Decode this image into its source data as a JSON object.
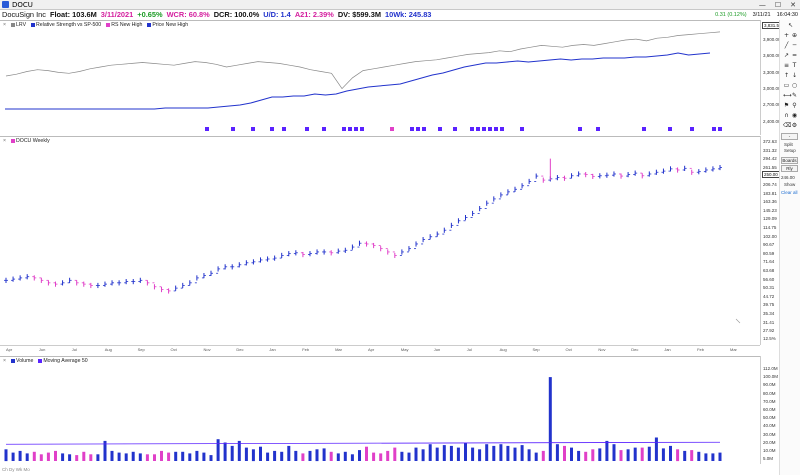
{
  "titlebar": {
    "ticker": "DOCU",
    "minimize": "—",
    "maximize": "☐",
    "close": "✕"
  },
  "info": {
    "company": "DocuSign Inc",
    "float": "Float: 103.6M",
    "date": "3/11/2021",
    "change": "+0.65%",
    "wcr": "WCR: 60.8%",
    "dcr": "DCR: 100.0%",
    "ud": "U/D: 1.4",
    "a21": "A21: 2.39%",
    "dv": "DV: $599.3M",
    "tenwk": "10Wk: 245.83"
  },
  "status": {
    "price": "0.31 (0.12%)",
    "date": "3/11/21",
    "time": "16:04:30"
  },
  "colors": {
    "blue": "#2233cc",
    "magenta": "#e040c8",
    "purple": "#5a22ff",
    "gray": "#888888"
  },
  "rs_panel": {
    "legend": [
      {
        "label": "LRV",
        "color": "#888888"
      },
      {
        "label": "Relative Strength vs SP-500",
        "color": "#2233cc"
      },
      {
        "label": "RS New High",
        "color": "#e040c8"
      },
      {
        "label": "Price New High",
        "color": "#2233cc"
      }
    ],
    "value_box": "3,831.56",
    "axis_labels": [
      "3,900.00",
      "3,600.00",
      "3,300.00",
      "3,000.00",
      "2,700.00",
      "2,400.00"
    ],
    "close_mark": "×"
  },
  "price_panel": {
    "legend": "DOCU Weekly",
    "price_box": "250.00",
    "axis_labels": [
      "372.63",
      "331.32",
      "294.42",
      "261.55",
      "232.63",
      "206.74",
      "183.81",
      "163.36",
      "145.23",
      "129.09",
      "114.75",
      "102.00",
      "90.67",
      "80.59",
      "71.64",
      "63.68",
      "56.60",
      "50.31",
      "44.72",
      "39.75",
      "35.34",
      "31.41",
      "27.92"
    ],
    "pct_label": "12.5%"
  },
  "volume_panel": {
    "legend_volume": "Volume",
    "legend_ma": "Moving Average 50",
    "axis_labels": [
      "112.0M",
      "100.0M",
      "90.0M",
      "80.0M",
      "70.0M",
      "60.0M",
      "50.0M",
      "40.0M",
      "30.0M",
      "20.0M",
      "10.0M",
      "5.0M"
    ]
  },
  "toolbar": {
    "minus": "-",
    "split": "Split",
    "setup": "Setup",
    "boards": "Boards",
    "boards_sub": "Rly",
    "show": "Show",
    "clear": "Clear all",
    "rs_value": "246.00"
  },
  "date_labels": [
    "Apr",
    "Jun",
    "Jul",
    "Aug",
    "Sep",
    "Oct",
    "Nov",
    "Dec",
    "Jan",
    "Feb",
    "Mar",
    "Apr",
    "May",
    "Jun",
    "Jul",
    "Aug",
    "Sep",
    "Oct",
    "Nov",
    "Dec",
    "Jan",
    "Feb",
    "Mar"
  ],
  "footer": "Ch Dy Wk Mo",
  "chart_data": {
    "type": "ohlc",
    "title": "DOCU Weekly",
    "weekly_closes": [
      60,
      61,
      62,
      63,
      62,
      60,
      58,
      57,
      58,
      60,
      58,
      57,
      56,
      56,
      57,
      58,
      58,
      59,
      59,
      60,
      58,
      55,
      53,
      52,
      54,
      56,
      58,
      62,
      64,
      66,
      70,
      72,
      72,
      74,
      76,
      77,
      79,
      80,
      81,
      84,
      86,
      87,
      85,
      86,
      88,
      88,
      87,
      89,
      90,
      94,
      99,
      98,
      96,
      92,
      88,
      84,
      88,
      92,
      98,
      104,
      108,
      112,
      118,
      126,
      134,
      140,
      148,
      158,
      170,
      180,
      190,
      198,
      205,
      215,
      228,
      245,
      232,
      236,
      240,
      238,
      246,
      252,
      250,
      244,
      246,
      248,
      252,
      245,
      250,
      255,
      246,
      252,
      258,
      262,
      270,
      266,
      272,
      258,
      260,
      266,
      270,
      275
    ],
    "rs_line": [
      24,
      24,
      24,
      24,
      24,
      24,
      24,
      24,
      24,
      24,
      24,
      24,
      24,
      24,
      24,
      25,
      25,
      25,
      25,
      25,
      26,
      27,
      28,
      30,
      33,
      36,
      36,
      37,
      37,
      39,
      38,
      39,
      42,
      44,
      46,
      47,
      48,
      49,
      52,
      55,
      58,
      60,
      63,
      66,
      68,
      70,
      70,
      71,
      72,
      71,
      72,
      73,
      74,
      73,
      74,
      74,
      75,
      75,
      75,
      76,
      76,
      77,
      78,
      80,
      78,
      79,
      80
    ],
    "price_line": [
      50,
      52,
      55,
      57,
      56,
      54,
      53,
      55,
      58,
      60,
      62,
      63,
      64,
      65,
      64,
      63,
      62,
      64,
      66,
      65,
      63,
      60,
      62,
      64,
      66,
      65,
      64,
      62,
      60,
      57,
      55,
      53,
      36,
      48,
      56,
      58,
      60,
      62,
      64,
      66,
      67,
      68,
      70,
      72,
      74,
      75,
      76,
      78,
      77,
      80,
      82,
      84,
      83,
      82,
      84,
      85,
      84,
      86,
      88,
      90,
      91,
      89,
      92,
      93,
      95,
      96,
      97,
      98,
      99
    ],
    "volume": [
      14,
      10,
      12,
      9,
      11,
      8,
      10,
      12,
      9,
      8,
      7,
      11,
      8,
      8,
      24,
      12,
      10,
      9,
      11,
      9,
      8,
      8,
      12,
      10,
      11,
      11,
      9,
      12,
      10,
      7,
      26,
      22,
      18,
      24,
      16,
      14,
      17,
      10,
      12,
      11,
      18,
      12,
      9,
      12,
      14,
      15,
      11,
      9,
      11,
      8,
      13,
      17,
      10,
      9,
      12,
      16,
      11,
      10,
      16,
      14,
      20,
      16,
      19,
      18,
      16,
      22,
      16,
      14,
      20,
      18,
      20,
      18,
      16,
      19,
      14,
      10,
      12,
      100,
      20,
      18,
      16,
      12,
      11,
      14,
      15,
      24,
      20,
      13,
      14,
      16,
      16,
      17,
      28,
      15,
      18,
      14,
      12,
      13,
      11,
      9,
      9,
      10
    ],
    "volume_ma_level": 20
  }
}
